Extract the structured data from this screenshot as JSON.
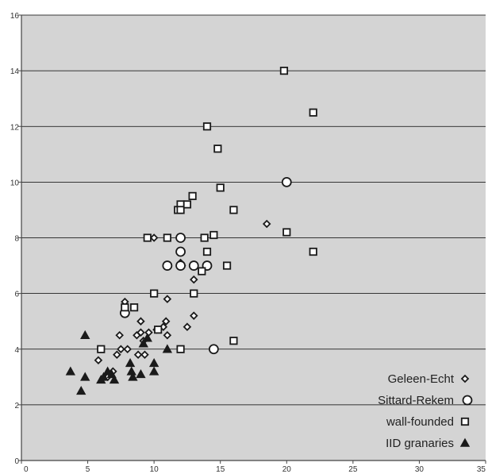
{
  "chart_data": {
    "type": "scatter",
    "title": "",
    "xlabel": "",
    "ylabel": "",
    "xlim": [
      0,
      35
    ],
    "ylim": [
      0,
      16
    ],
    "x_ticks": [
      0,
      5,
      10,
      15,
      20,
      25,
      30,
      35
    ],
    "y_ticks": [
      0,
      2,
      4,
      6,
      8,
      10,
      12,
      14,
      16
    ],
    "grid": "horizontal",
    "legend_position": "bottom-right",
    "colors": {
      "plot_background": "#d4d4d4",
      "gridline": "#000000",
      "marker_stroke": "#1a1a1a",
      "marker_fill_light": "#ffffff",
      "marker_fill_dark": "#1a1a1a"
    },
    "series": [
      {
        "name": "Geleen-Echt",
        "marker": "diamond",
        "points": [
          [
            5.8,
            3.6
          ],
          [
            6.5,
            3.0
          ],
          [
            6.9,
            3.2
          ],
          [
            7.2,
            3.8
          ],
          [
            7.5,
            4.0
          ],
          [
            7.4,
            4.5
          ],
          [
            8.0,
            4.0
          ],
          [
            7.8,
            5.7
          ],
          [
            8.8,
            3.8
          ],
          [
            8.7,
            4.5
          ],
          [
            9.0,
            4.6
          ],
          [
            9.0,
            5.0
          ],
          [
            9.3,
            3.8
          ],
          [
            9.6,
            4.6
          ],
          [
            9.2,
            4.3
          ],
          [
            10.2,
            4.7
          ],
          [
            10.7,
            4.8
          ],
          [
            10.9,
            5.0
          ],
          [
            11.0,
            4.5
          ],
          [
            11.0,
            5.8
          ],
          [
            10.0,
            8.0
          ],
          [
            12.0,
            7.1
          ],
          [
            12.1,
            7.0
          ],
          [
            12.5,
            4.8
          ],
          [
            13.0,
            5.2
          ],
          [
            13.0,
            6.5
          ],
          [
            18.5,
            8.5
          ]
        ]
      },
      {
        "name": "Sittard-Rekem",
        "marker": "circle",
        "points": [
          [
            7.8,
            5.3
          ],
          [
            11.0,
            7.0
          ],
          [
            12.0,
            7.0
          ],
          [
            12.0,
            7.5
          ],
          [
            12.0,
            8.0
          ],
          [
            13.0,
            7.0
          ],
          [
            14.0,
            7.0
          ],
          [
            14.5,
            4.0
          ],
          [
            20.0,
            10.0
          ]
        ]
      },
      {
        "name": "wall-founded",
        "marker": "square",
        "points": [
          [
            6.0,
            4.0
          ],
          [
            7.8,
            5.5
          ],
          [
            8.5,
            5.5
          ],
          [
            9.5,
            8.0
          ],
          [
            10.0,
            6.0
          ],
          [
            11.0,
            8.0
          ],
          [
            10.3,
            4.7
          ],
          [
            11.8,
            9.0
          ],
          [
            12.0,
            9.2
          ],
          [
            12.0,
            9.0
          ],
          [
            12.5,
            9.2
          ],
          [
            12.9,
            9.5
          ],
          [
            12.0,
            4.0
          ],
          [
            13.0,
            6.0
          ],
          [
            13.6,
            6.8
          ],
          [
            13.8,
            8.0
          ],
          [
            14.0,
            7.5
          ],
          [
            14.5,
            8.1
          ],
          [
            14.0,
            12.0
          ],
          [
            14.8,
            11.2
          ],
          [
            15.0,
            9.8
          ],
          [
            15.5,
            7.0
          ],
          [
            16.0,
            9.0
          ],
          [
            16.0,
            4.3
          ],
          [
            19.8,
            14.0
          ],
          [
            20.0,
            8.2
          ],
          [
            22.0,
            12.5
          ],
          [
            22.0,
            7.5
          ]
        ]
      },
      {
        "name": "IID granaries",
        "marker": "triangle",
        "points": [
          [
            3.7,
            3.2
          ],
          [
            4.5,
            2.5
          ],
          [
            4.8,
            3.0
          ],
          [
            4.8,
            4.5
          ],
          [
            6.0,
            2.9
          ],
          [
            6.2,
            3.0
          ],
          [
            6.5,
            3.2
          ],
          [
            6.8,
            3.1
          ],
          [
            7.0,
            2.9
          ],
          [
            8.2,
            3.5
          ],
          [
            8.3,
            3.2
          ],
          [
            8.4,
            3.0
          ],
          [
            9.0,
            3.1
          ],
          [
            9.2,
            4.2
          ],
          [
            9.5,
            4.4
          ],
          [
            10.0,
            3.2
          ],
          [
            10.0,
            3.5
          ],
          [
            11.0,
            4.0
          ]
        ]
      }
    ]
  }
}
